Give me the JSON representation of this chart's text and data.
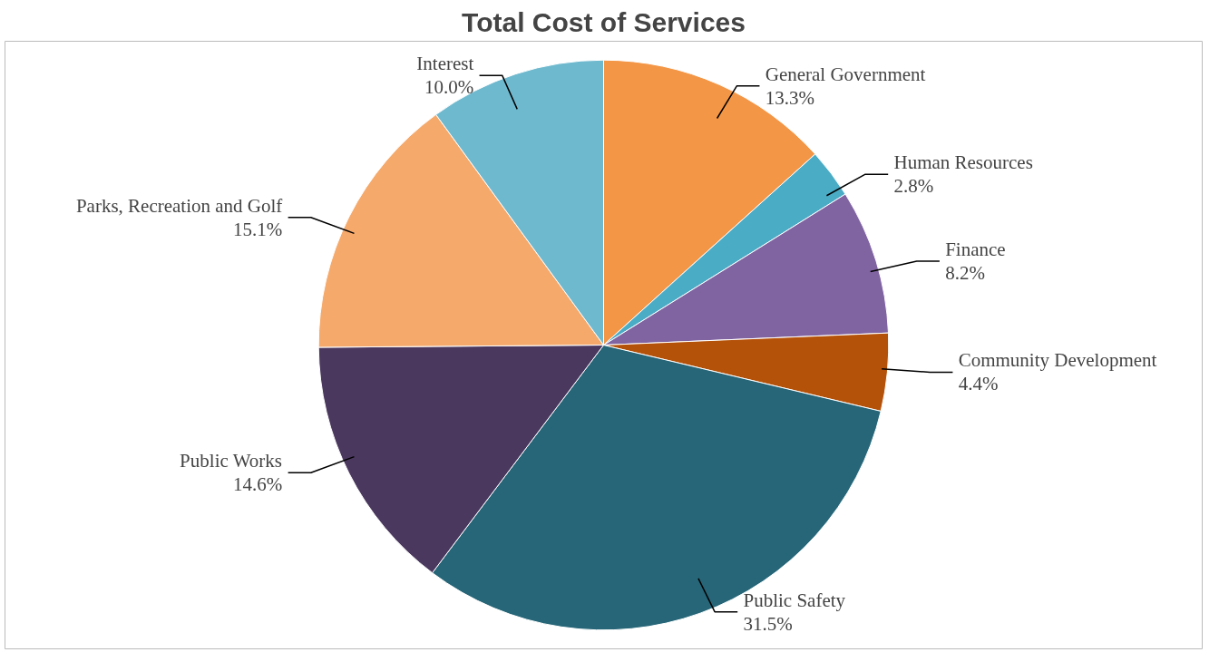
{
  "chart_data": {
    "type": "pie",
    "title": "Total Cost of Services",
    "categories": [
      "General Government",
      "Human Resources",
      "Finance",
      "Community Development",
      "Public Safety",
      "Public Works",
      "Parks, Recreation and Golf",
      "Interest"
    ],
    "values": [
      13.3,
      2.8,
      8.2,
      4.4,
      31.5,
      14.6,
      15.1,
      10.0
    ],
    "value_labels": [
      "13.3%",
      "2.8%",
      "8.2%",
      "4.4%",
      "31.5%",
      "14.6%",
      "15.1%",
      "10.0%"
    ],
    "colors": [
      "#f39646",
      "#4bacc6",
      "#8064a2",
      "#b5520a",
      "#266678",
      "#4b385f",
      "#f5a96b",
      "#6fb9cf"
    ],
    "legend": false
  }
}
